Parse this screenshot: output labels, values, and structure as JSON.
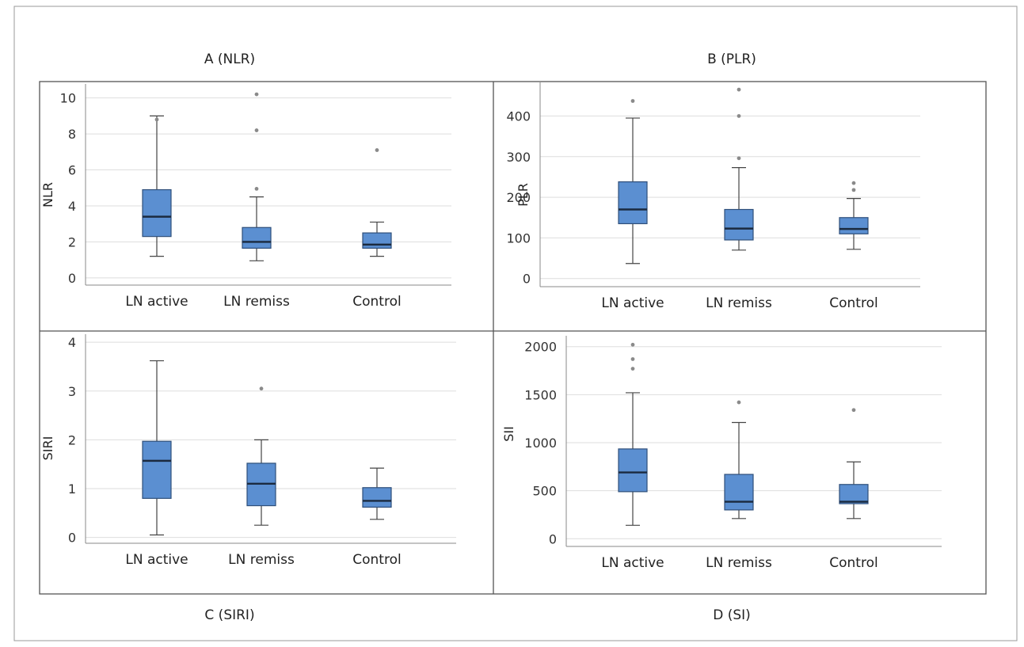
{
  "figure": {
    "panel_titles": [
      "A (NLR)",
      "B (PLR)",
      "C (SIRI)",
      "D (SI)"
    ]
  },
  "chart_data": [
    {
      "type": "box",
      "title": "A (NLR)",
      "ylabel": "NLR",
      "categories": [
        "LN active",
        "LN remiss",
        "Control"
      ],
      "ylim": [
        -0.4,
        10.6
      ],
      "yticks": [
        0,
        2,
        4,
        6,
        8,
        10
      ],
      "box_color": "#5b8fd1",
      "boxes": [
        {
          "whisker_low": 1.2,
          "q1": 2.3,
          "median": 3.4,
          "q3": 4.9,
          "whisker_high": 9.0,
          "outliers": [
            8.8
          ]
        },
        {
          "whisker_low": 0.95,
          "q1": 1.65,
          "median": 2.0,
          "q3": 2.8,
          "whisker_high": 4.5,
          "outliers": [
            4.95,
            8.2,
            10.2
          ]
        },
        {
          "whisker_low": 1.2,
          "q1": 1.65,
          "median": 1.85,
          "q3": 2.5,
          "whisker_high": 3.1,
          "outliers": [
            7.1
          ]
        }
      ]
    },
    {
      "type": "box",
      "title": "B (PLR)",
      "ylabel": "PLR",
      "categories": [
        "LN active",
        "LN remiss",
        "Control"
      ],
      "ylim": [
        -20,
        475
      ],
      "yticks": [
        0,
        100,
        200,
        300,
        400
      ],
      "box_color": "#5b8fd1",
      "boxes": [
        {
          "whisker_low": 37,
          "q1": 135,
          "median": 170,
          "q3": 238,
          "whisker_high": 395,
          "outliers": [
            437
          ]
        },
        {
          "whisker_low": 70,
          "q1": 95,
          "median": 123,
          "q3": 170,
          "whisker_high": 273,
          "outliers": [
            296,
            400,
            465
          ]
        },
        {
          "whisker_low": 72,
          "q1": 110,
          "median": 122,
          "q3": 150,
          "whisker_high": 197,
          "outliers": [
            218,
            235
          ]
        }
      ]
    },
    {
      "type": "box",
      "title": "C (SIRI)",
      "ylabel": "SIRI",
      "categories": [
        "LN active",
        "LN remiss",
        "Control"
      ],
      "ylim": [
        -0.12,
        4.1
      ],
      "yticks": [
        0,
        1,
        2,
        3,
        4
      ],
      "box_color": "#5b8fd1",
      "boxes": [
        {
          "whisker_low": 0.05,
          "q1": 0.8,
          "median": 1.57,
          "q3": 1.97,
          "whisker_high": 3.62,
          "outliers": []
        },
        {
          "whisker_low": 0.25,
          "q1": 0.65,
          "median": 1.1,
          "q3": 1.52,
          "whisker_high": 2.0,
          "outliers": [
            3.05
          ]
        },
        {
          "whisker_low": 0.37,
          "q1": 0.62,
          "median": 0.75,
          "q3": 1.02,
          "whisker_high": 1.42,
          "outliers": []
        }
      ]
    },
    {
      "type": "box",
      "title": "D (SI)",
      "ylabel": "SII",
      "categories": [
        "LN active",
        "LN remiss",
        "Control"
      ],
      "ylim": [
        -80,
        2080
      ],
      "yticks": [
        0,
        500,
        1000,
        1500,
        2000
      ],
      "box_color": "#5b8fd1",
      "boxes": [
        {
          "whisker_low": 140,
          "q1": 490,
          "median": 690,
          "q3": 935,
          "whisker_high": 1520,
          "outliers": [
            1770,
            1870,
            2020
          ]
        },
        {
          "whisker_low": 210,
          "q1": 300,
          "median": 385,
          "q3": 670,
          "whisker_high": 1210,
          "outliers": [
            1420
          ]
        },
        {
          "whisker_low": 210,
          "q1": 365,
          "median": 385,
          "q3": 565,
          "whisker_high": 800,
          "outliers": [
            1340
          ]
        }
      ]
    }
  ]
}
